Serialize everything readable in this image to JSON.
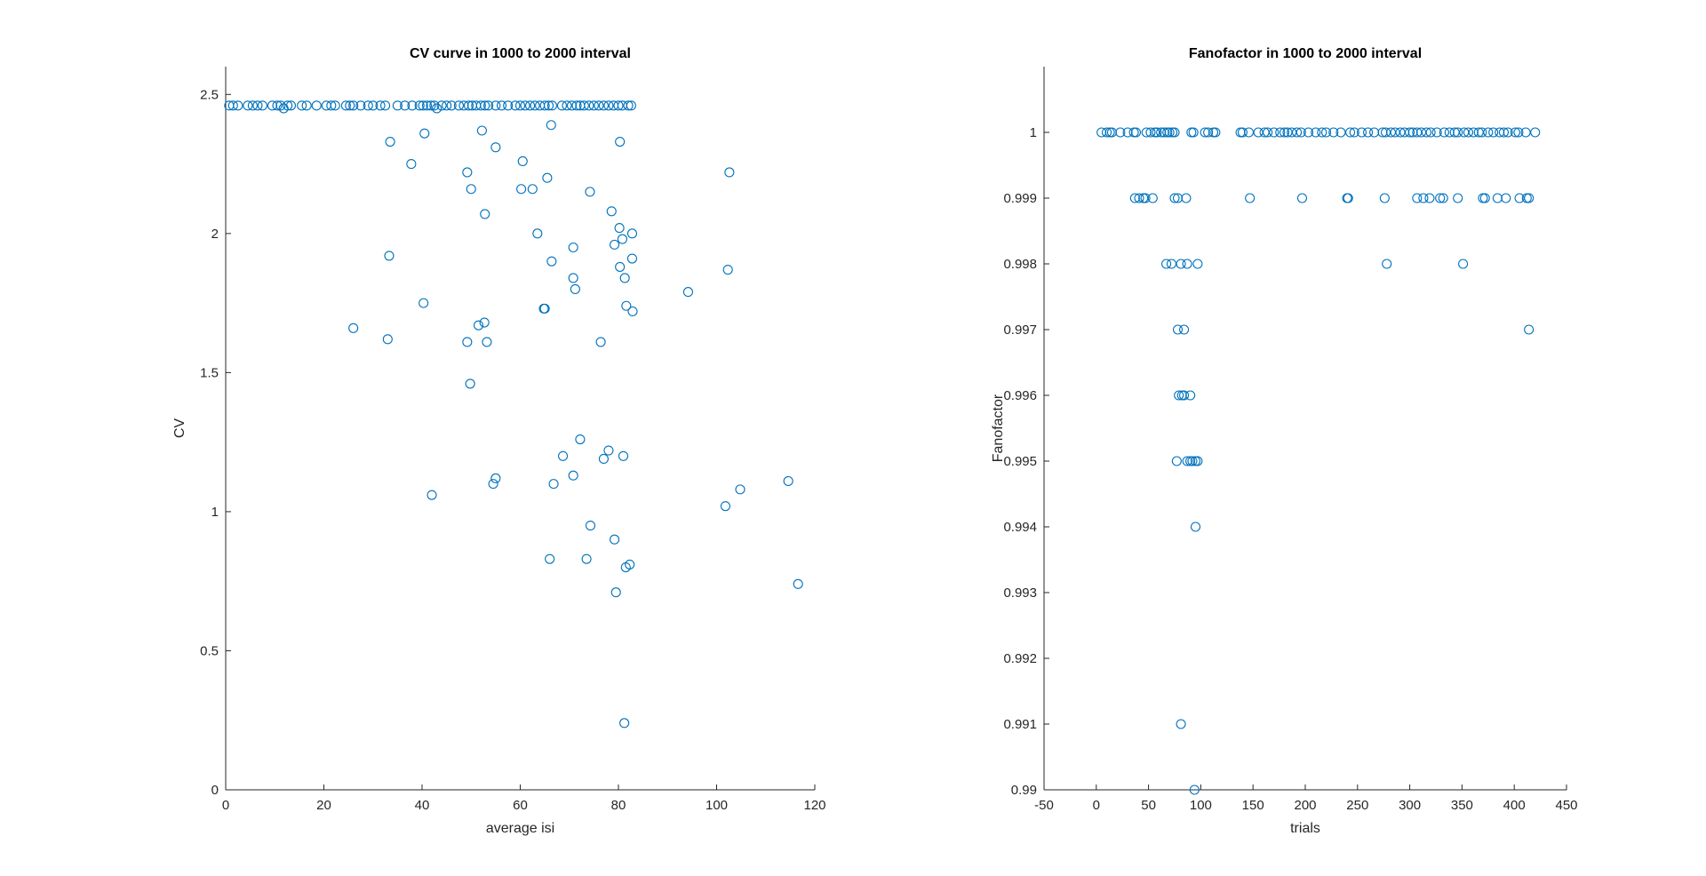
{
  "chart_data": [
    {
      "type": "scatter",
      "title": "CV curve in 1000 to 2000 interval",
      "xlabel": "average isi",
      "ylabel": "CV",
      "xlim": [
        0,
        120
      ],
      "ylim": [
        0,
        2.6
      ],
      "xticks": [
        0,
        20,
        40,
        60,
        80,
        100,
        120
      ],
      "xtick_labels": [
        "0",
        "20",
        "40",
        "60",
        "80",
        "100",
        "120"
      ],
      "yticks": [
        0,
        0.5,
        1,
        1.5,
        2,
        2.5
      ],
      "ytick_labels": [
        "0",
        "0.5",
        "1",
        "1.5",
        "2",
        "2.5"
      ],
      "grid": false,
      "marker": "circle-open",
      "color": "#0072BD",
      "points": [
        [
          0.7,
          2.46
        ],
        [
          1.5,
          2.46
        ],
        [
          2.5,
          2.46
        ],
        [
          4.5,
          2.46
        ],
        [
          5.5,
          2.46
        ],
        [
          6.5,
          2.46
        ],
        [
          7.5,
          2.46
        ],
        [
          9.5,
          2.46
        ],
        [
          10.5,
          2.46
        ],
        [
          11.2,
          2.46
        ],
        [
          11.8,
          2.45
        ],
        [
          12.6,
          2.46
        ],
        [
          13.3,
          2.46
        ],
        [
          15.5,
          2.46
        ],
        [
          16.5,
          2.46
        ],
        [
          18.5,
          2.46
        ],
        [
          20.5,
          2.46
        ],
        [
          21.5,
          2.46
        ],
        [
          22.3,
          2.46
        ],
        [
          24.5,
          2.46
        ],
        [
          25.3,
          2.46
        ],
        [
          26,
          2.46
        ],
        [
          27.5,
          2.46
        ],
        [
          29,
          2.46
        ],
        [
          30,
          2.46
        ],
        [
          31.5,
          2.46
        ],
        [
          32.5,
          2.46
        ],
        [
          35,
          2.46
        ],
        [
          36.5,
          2.46
        ],
        [
          38,
          2.46
        ],
        [
          39.5,
          2.46
        ],
        [
          40.2,
          2.46
        ],
        [
          41,
          2.46
        ],
        [
          41.8,
          2.46
        ],
        [
          42.5,
          2.46
        ],
        [
          43,
          2.45
        ],
        [
          44,
          2.46
        ],
        [
          45,
          2.46
        ],
        [
          46,
          2.46
        ],
        [
          47.5,
          2.46
        ],
        [
          48.5,
          2.46
        ],
        [
          49.5,
          2.46
        ],
        [
          50.2,
          2.46
        ],
        [
          51,
          2.46
        ],
        [
          52,
          2.46
        ],
        [
          52.8,
          2.46
        ],
        [
          53.5,
          2.46
        ],
        [
          55,
          2.46
        ],
        [
          56.2,
          2.46
        ],
        [
          57.5,
          2.46
        ],
        [
          59,
          2.46
        ],
        [
          60,
          2.46
        ],
        [
          61,
          2.46
        ],
        [
          62,
          2.46
        ],
        [
          63,
          2.46
        ],
        [
          64,
          2.46
        ],
        [
          65,
          2.46
        ],
        [
          65.8,
          2.46
        ],
        [
          66.5,
          2.46
        ],
        [
          68.5,
          2.46
        ],
        [
          69.5,
          2.46
        ],
        [
          70.5,
          2.46
        ],
        [
          71.5,
          2.46
        ],
        [
          72.2,
          2.46
        ],
        [
          73,
          2.46
        ],
        [
          74,
          2.46
        ],
        [
          75,
          2.46
        ],
        [
          76,
          2.46
        ],
        [
          77,
          2.46
        ],
        [
          78,
          2.46
        ],
        [
          79,
          2.46
        ],
        [
          80,
          2.46
        ],
        [
          80.8,
          2.46
        ],
        [
          82,
          2.46
        ],
        [
          82.6,
          2.46
        ],
        [
          33.5,
          2.33
        ],
        [
          40.5,
          2.36
        ],
        [
          37.8,
          2.25
        ],
        [
          52.2,
          2.37
        ],
        [
          55,
          2.31
        ],
        [
          66.3,
          2.39
        ],
        [
          80.3,
          2.33
        ],
        [
          102.6,
          2.22
        ],
        [
          60.5,
          2.26
        ],
        [
          49.2,
          2.22
        ],
        [
          65.5,
          2.2
        ],
        [
          50,
          2.16
        ],
        [
          60.2,
          2.16
        ],
        [
          62.5,
          2.16
        ],
        [
          74.2,
          2.15
        ],
        [
          52.8,
          2.07
        ],
        [
          78.6,
          2.08
        ],
        [
          63.5,
          2
        ],
        [
          70.8,
          1.95
        ],
        [
          80.2,
          2.02
        ],
        [
          80.8,
          1.98
        ],
        [
          79.2,
          1.96
        ],
        [
          82.8,
          2
        ],
        [
          33.3,
          1.92
        ],
        [
          66.4,
          1.9
        ],
        [
          80.3,
          1.88
        ],
        [
          82.8,
          1.91
        ],
        [
          102.3,
          1.87
        ],
        [
          70.8,
          1.84
        ],
        [
          81.3,
          1.84
        ],
        [
          71.2,
          1.8
        ],
        [
          94.2,
          1.79
        ],
        [
          40.3,
          1.75
        ],
        [
          81.6,
          1.74
        ],
        [
          64.8,
          1.73
        ],
        [
          65,
          1.73
        ],
        [
          82.9,
          1.72
        ],
        [
          26,
          1.66
        ],
        [
          51.5,
          1.67
        ],
        [
          52.7,
          1.68
        ],
        [
          33,
          1.62
        ],
        [
          49.2,
          1.61
        ],
        [
          53.2,
          1.61
        ],
        [
          76.4,
          1.61
        ],
        [
          49.8,
          1.46
        ],
        [
          72.2,
          1.26
        ],
        [
          68.7,
          1.2
        ],
        [
          78,
          1.22
        ],
        [
          81,
          1.2
        ],
        [
          77,
          1.19
        ],
        [
          70.8,
          1.13
        ],
        [
          54.5,
          1.1
        ],
        [
          55,
          1.12
        ],
        [
          66.8,
          1.1
        ],
        [
          114.6,
          1.11
        ],
        [
          104.8,
          1.08
        ],
        [
          42,
          1.06
        ],
        [
          101.8,
          1.02
        ],
        [
          74.3,
          0.95
        ],
        [
          79.2,
          0.9
        ],
        [
          66,
          0.83
        ],
        [
          73.5,
          0.83
        ],
        [
          81.5,
          0.8
        ],
        [
          82.3,
          0.81
        ],
        [
          116.6,
          0.74
        ],
        [
          79.5,
          0.71
        ],
        [
          81.2,
          0.24
        ]
      ]
    },
    {
      "type": "scatter",
      "title": "Fanofactor in 1000 to 2000 interval",
      "xlabel": "trials",
      "ylabel": "Fanofactor",
      "xlim": [
        -50,
        450
      ],
      "ylim": [
        0.99,
        1.001
      ],
      "xticks": [
        -50,
        0,
        50,
        100,
        150,
        200,
        250,
        300,
        350,
        400,
        450
      ],
      "xtick_labels": [
        "-50",
        "0",
        "50",
        "100",
        "150",
        "200",
        "250",
        "300",
        "350",
        "400",
        "450"
      ],
      "yticks": [
        0.99,
        0.991,
        0.992,
        0.993,
        0.994,
        0.995,
        0.996,
        0.997,
        0.998,
        0.999,
        1
      ],
      "ytick_labels": [
        "0.99",
        "0.991",
        "0.992",
        "0.993",
        "0.994",
        "0.995",
        "0.996",
        "0.997",
        "0.998",
        "0.999",
        "1"
      ],
      "grid": false,
      "marker": "circle-open",
      "color": "#0072BD",
      "points": [
        [
          5,
          1
        ],
        [
          10,
          1
        ],
        [
          13,
          1
        ],
        [
          15,
          1
        ],
        [
          23,
          1
        ],
        [
          30,
          1
        ],
        [
          36,
          1
        ],
        [
          38,
          1
        ],
        [
          48,
          1
        ],
        [
          52,
          1
        ],
        [
          56,
          1
        ],
        [
          58,
          1
        ],
        [
          62,
          1
        ],
        [
          65,
          1
        ],
        [
          68,
          1
        ],
        [
          70,
          1
        ],
        [
          73,
          1
        ],
        [
          75,
          1
        ],
        [
          91,
          1
        ],
        [
          93,
          1
        ],
        [
          104,
          1
        ],
        [
          107,
          1
        ],
        [
          112,
          1
        ],
        [
          114,
          1
        ],
        [
          138,
          1
        ],
        [
          140,
          1
        ],
        [
          146,
          1
        ],
        [
          155,
          1
        ],
        [
          161,
          1
        ],
        [
          164,
          1
        ],
        [
          170,
          1
        ],
        [
          176,
          1
        ],
        [
          180,
          1
        ],
        [
          183,
          1
        ],
        [
          187,
          1
        ],
        [
          192,
          1
        ],
        [
          196,
          1
        ],
        [
          203,
          1
        ],
        [
          210,
          1
        ],
        [
          216,
          1
        ],
        [
          220,
          1
        ],
        [
          227,
          1
        ],
        [
          234,
          1
        ],
        [
          243,
          1
        ],
        [
          247,
          1
        ],
        [
          254,
          1
        ],
        [
          260,
          1
        ],
        [
          266,
          1
        ],
        [
          274,
          1
        ],
        [
          277,
          1
        ],
        [
          282,
          1
        ],
        [
          286,
          1
        ],
        [
          291,
          1
        ],
        [
          295,
          1
        ],
        [
          300,
          1
        ],
        [
          303,
          1
        ],
        [
          307,
          1
        ],
        [
          311,
          1
        ],
        [
          316,
          1
        ],
        [
          320,
          1
        ],
        [
          326,
          1
        ],
        [
          333,
          1
        ],
        [
          338,
          1
        ],
        [
          343,
          1
        ],
        [
          346,
          1
        ],
        [
          352,
          1
        ],
        [
          356,
          1
        ],
        [
          361,
          1
        ],
        [
          366,
          1
        ],
        [
          369,
          1
        ],
        [
          375,
          1
        ],
        [
          380,
          1
        ],
        [
          386,
          1
        ],
        [
          390,
          1
        ],
        [
          394,
          1
        ],
        [
          401,
          1
        ],
        [
          404,
          1
        ],
        [
          411,
          1
        ],
        [
          420,
          1
        ],
        [
          37,
          0.999
        ],
        [
          41,
          0.999
        ],
        [
          45,
          0.999
        ],
        [
          47,
          0.999
        ],
        [
          54,
          0.999
        ],
        [
          75,
          0.999
        ],
        [
          78,
          0.999
        ],
        [
          86,
          0.999
        ],
        [
          147,
          0.999
        ],
        [
          197,
          0.999
        ],
        [
          240,
          0.999
        ],
        [
          241,
          0.999
        ],
        [
          276,
          0.999
        ],
        [
          307,
          0.999
        ],
        [
          313,
          0.999
        ],
        [
          319,
          0.999
        ],
        [
          329,
          0.999
        ],
        [
          332,
          0.999
        ],
        [
          346,
          0.999
        ],
        [
          370,
          0.999
        ],
        [
          372,
          0.999
        ],
        [
          384,
          0.999
        ],
        [
          392,
          0.999
        ],
        [
          405,
          0.999
        ],
        [
          412,
          0.999
        ],
        [
          414,
          0.999
        ],
        [
          67,
          0.998
        ],
        [
          72,
          0.998
        ],
        [
          81,
          0.998
        ],
        [
          87,
          0.998
        ],
        [
          97,
          0.998
        ],
        [
          278,
          0.998
        ],
        [
          351,
          0.998
        ],
        [
          78,
          0.997
        ],
        [
          84,
          0.997
        ],
        [
          414,
          0.997
        ],
        [
          79,
          0.996
        ],
        [
          82,
          0.996
        ],
        [
          84,
          0.996
        ],
        [
          90,
          0.996
        ],
        [
          77,
          0.995
        ],
        [
          87,
          0.995
        ],
        [
          90,
          0.995
        ],
        [
          92,
          0.995
        ],
        [
          95,
          0.995
        ],
        [
          97,
          0.995
        ],
        [
          95,
          0.994
        ],
        [
          81,
          0.991
        ],
        [
          94,
          0.99
        ]
      ]
    }
  ]
}
